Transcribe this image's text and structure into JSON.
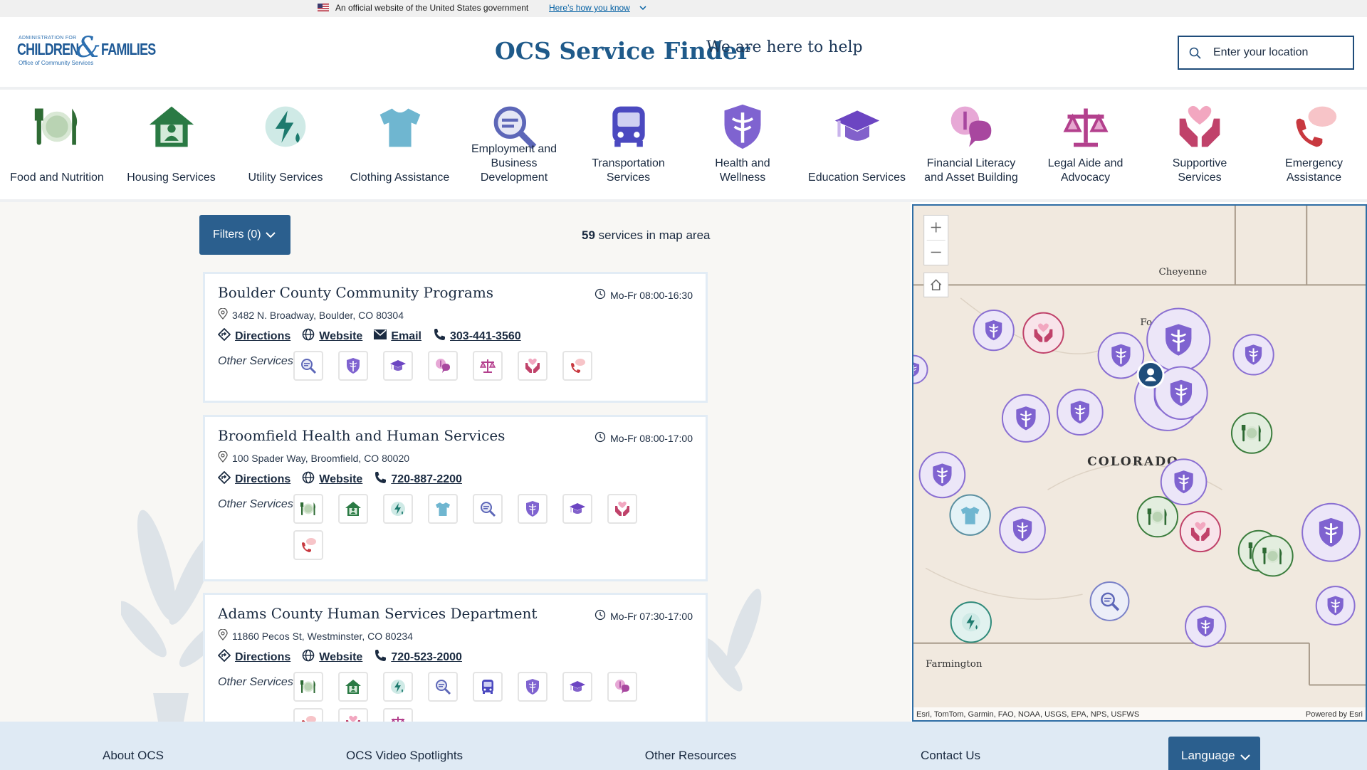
{
  "banner": {
    "text": "An official website of the United States government",
    "link": "Here’s how you know"
  },
  "header": {
    "logo_top": "ADMINISTRATION FOR",
    "logo_left": "CHILDREN",
    "logo_amp": "&",
    "logo_right": "FAMILIES",
    "logo_sub": "Office of Community Services",
    "title": "OCS Service Finder",
    "tagline": "We are here to help",
    "search_placeholder": "Enter your location"
  },
  "categories": [
    "Food and Nutrition",
    "Housing Services",
    "Utility Services",
    "Clothing Assistance",
    "Employment and Business Development",
    "Transportation Services",
    "Health and Wellness",
    "Education Services",
    "Financial Literacy and Asset Building",
    "Legal Aide and Advocacy",
    "Supportive Services",
    "Emergency Assistance"
  ],
  "results": {
    "filters": "Filters (0)",
    "count": 59,
    "count_label": "services in map area"
  },
  "services": [
    {
      "name": "Boulder County Community Programs",
      "hours": "Mo-Fr 08:00-16:30",
      "address": "3482 N. Broadway, Boulder, CO 80304",
      "directions": "Directions",
      "website": "Website",
      "email": "Email",
      "phone": "303-441-3560",
      "other_label": "Other Services:"
    },
    {
      "name": "Broomfield Health and Human Services",
      "hours": "Mo-Fr 08:00-17:00",
      "address": "100 Spader Way, Broomfield, CO 80020",
      "directions": "Directions",
      "website": "Website",
      "phone": "720-887-2200",
      "other_label": "Other Services:"
    },
    {
      "name": "Adams County Human Services Department",
      "hours": "Mo-Fr 07:30-17:00",
      "address": "11860 Pecos St, Westminster, CO 80234",
      "directions": "Directions",
      "website": "Website",
      "phone": "720-523-2000",
      "other_label": "Other Services:"
    }
  ],
  "map": {
    "labels": [
      "Cheyenne",
      "COLORADO",
      "Farmington",
      "Fo"
    ],
    "attribution": "Esri, TomTom, Garmin, FAO, NOAA, USGS, EPA, NPS, USFWS",
    "powered": "Powered by Esri"
  },
  "footer": {
    "links": [
      "About OCS",
      "OCS Video Spotlights",
      "Other Resources",
      "Contact Us"
    ],
    "language": "Language"
  }
}
